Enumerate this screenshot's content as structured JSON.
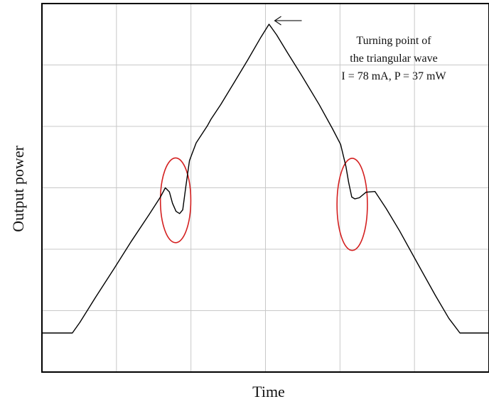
{
  "chart_data": {
    "type": "line",
    "title": "",
    "xlabel": "Time",
    "ylabel": "Output power",
    "xlim": [
      0,
      100
    ],
    "ylim": [
      0,
      100
    ],
    "grid": true,
    "tick_labels_shown": false,
    "series": [
      {
        "color": "#000000",
        "points": [
          [
            0,
            10.6
          ],
          [
            6.8,
            10.6
          ],
          [
            8.5,
            13.5
          ],
          [
            12,
            20.3
          ],
          [
            16,
            27.8
          ],
          [
            20,
            35.5
          ],
          [
            24,
            42.8
          ],
          [
            26.5,
            47.5
          ],
          [
            27.6,
            50.0
          ],
          [
            28.5,
            48.9
          ],
          [
            29.2,
            45.8
          ],
          [
            30.0,
            43.6
          ],
          [
            30.8,
            43.0
          ],
          [
            31.5,
            44.0
          ],
          [
            32.2,
            50.4
          ],
          [
            33.0,
            57.4
          ],
          [
            34.5,
            62.2
          ],
          [
            37.0,
            66.8
          ],
          [
            37.8,
            68.6
          ],
          [
            40.0,
            72.6
          ],
          [
            43.0,
            78.6
          ],
          [
            46.0,
            84.6
          ],
          [
            49.0,
            90.9
          ],
          [
            50.8,
            94.4
          ],
          [
            52.5,
            91.5
          ],
          [
            55.0,
            86.5
          ],
          [
            58.0,
            80.7
          ],
          [
            62.0,
            72.6
          ],
          [
            65.0,
            66.0
          ],
          [
            66.8,
            61.8
          ],
          [
            68.0,
            55.8
          ],
          [
            68.6,
            51.5
          ],
          [
            69.3,
            47.5
          ],
          [
            70.0,
            47.0
          ],
          [
            71.0,
            47.3
          ],
          [
            72.5,
            48.8
          ],
          [
            74.5,
            49.0
          ],
          [
            77.0,
            44.4
          ],
          [
            80.0,
            38.3
          ],
          [
            84.0,
            29.5
          ],
          [
            88.0,
            20.8
          ],
          [
            91.0,
            14.6
          ],
          [
            93.5,
            10.6
          ],
          [
            100,
            10.6
          ]
        ]
      }
    ],
    "highlights": [
      {
        "type": "ellipse",
        "color": "#d42020",
        "center": [
          29.9,
          46.6
        ],
        "rx": 3.4,
        "ry": 11.5
      },
      {
        "type": "ellipse",
        "color": "#d42020",
        "center": [
          69.4,
          45.5
        ],
        "rx": 3.4,
        "ry": 12.5
      }
    ],
    "annotations": [
      {
        "lines": [
          "Turning point of",
          "the triangular wave",
          "I = 78 mA, P = 37 mW"
        ],
        "arrow_to": [
          50.8,
          94.4
        ]
      }
    ]
  }
}
